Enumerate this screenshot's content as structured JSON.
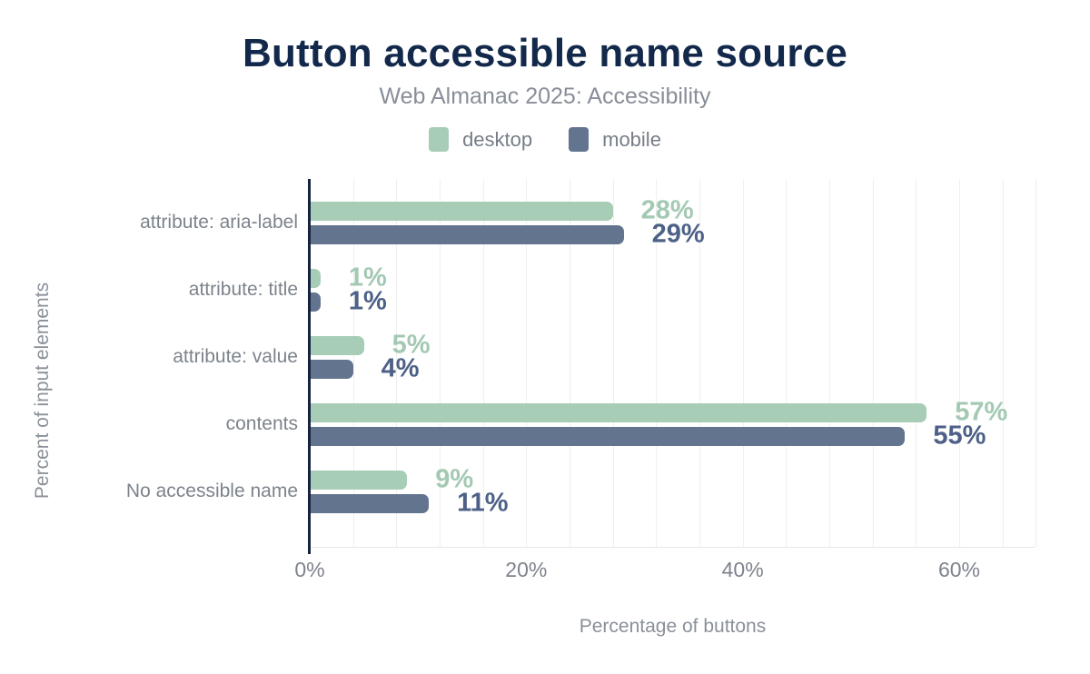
{
  "chart": {
    "title": "Button accessible name source",
    "subtitle": "Web Almanac 2025: Accessibility",
    "xlabel": "Percentage of buttons",
    "ylabel": "Percent of input elements"
  },
  "chart_data": {
    "type": "bar",
    "orientation": "horizontal",
    "title": "Button accessible name source",
    "subtitle": "Web Almanac 2025: Accessibility",
    "xlabel": "Percentage of buttons",
    "ylabel": "Percent of input elements",
    "categories": [
      "attribute: aria-label",
      "attribute: title",
      "attribute: value",
      "contents",
      "No accessible name"
    ],
    "series": [
      {
        "name": "desktop",
        "color": "#a8cdb7",
        "label_color": "#a3c9b2",
        "values": [
          28,
          1,
          5,
          57,
          9
        ]
      },
      {
        "name": "mobile",
        "color": "#63748e",
        "label_color": "#4d6087",
        "values": [
          29,
          1,
          4,
          55,
          11
        ]
      }
    ],
    "value_suffix": "%",
    "data_labels": {
      "desktop": [
        "28%",
        "1%",
        "5%",
        "57%",
        "9%"
      ],
      "mobile": [
        "29%",
        "1%",
        "4%",
        "55%",
        "11%"
      ]
    },
    "x_ticks": [
      "0%",
      "20%",
      "40%",
      "60%"
    ],
    "x_tick_values": [
      0,
      20,
      40,
      60
    ],
    "xlim": [
      0,
      67
    ],
    "grid": true,
    "grid_interval": 4,
    "legend_position": "top",
    "colors": {
      "title": "#13294b",
      "subtitle": "#888e98",
      "axis_line": "#16233e",
      "gridline": "#efefee",
      "axis_text": "#7d838c"
    }
  }
}
